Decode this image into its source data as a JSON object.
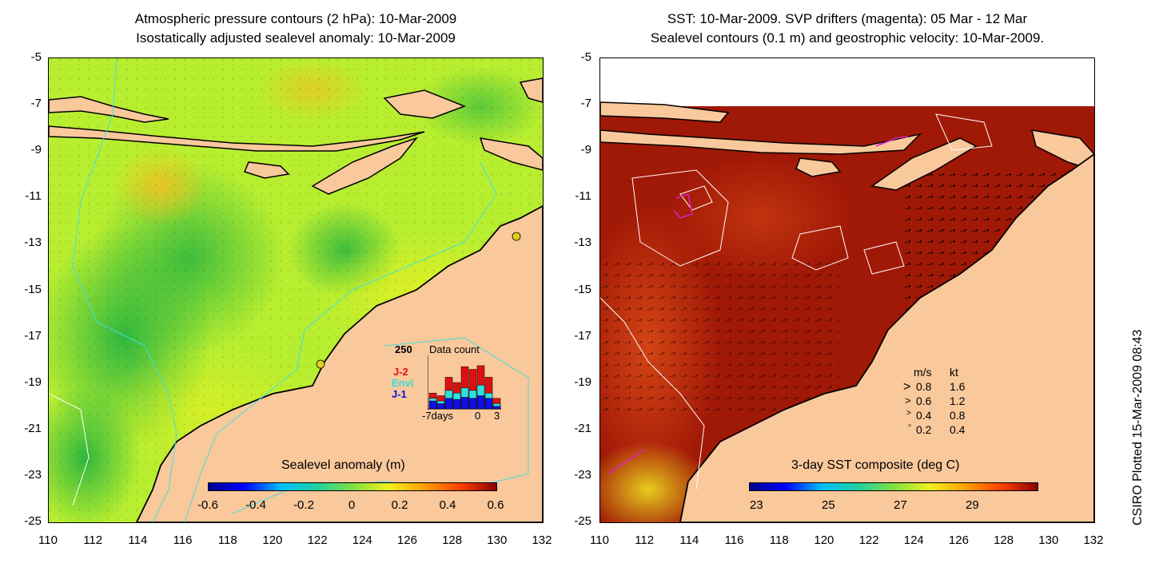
{
  "left_panel": {
    "title_line1": "Atmospheric pressure contours (2 hPa): 10-Mar-2009",
    "title_line2": "Isostatically adjusted sealevel anomaly: 10-Mar-2009",
    "colorbar": {
      "title": "Sealevel anomaly (m)",
      "ticks": [
        "-0.6",
        "-0.4",
        "-0.2",
        "0",
        "0.2",
        "0.4",
        "0.6"
      ]
    },
    "inset": {
      "title": "Data count",
      "ymax_label": "250",
      "series": [
        "J-2",
        "Envi",
        "J-1"
      ],
      "series_colors": [
        "#e01010",
        "#30e0e0",
        "#1010e0"
      ],
      "x_labels": [
        "-7days",
        "0",
        "3"
      ]
    }
  },
  "right_panel": {
    "title_line1": "SST: 10-Mar-2009. SVP drifters (magenta): 05 Mar - 12 Mar",
    "title_line2": "Sealevel contours (0.1 m) and geostrophic velocity: 10-Mar-2009.",
    "colorbar": {
      "title": "3-day SST composite (deg C)",
      "ticks": [
        "23",
        "25",
        "27",
        "29"
      ]
    },
    "velocity_legend": {
      "header_ms": "m/s",
      "header_kt": "kt",
      "rows": [
        {
          "ms": "0.8",
          "kt": "1.6"
        },
        {
          "ms": "0.6",
          "kt": "1.2"
        },
        {
          "ms": "0.4",
          "kt": "0.8"
        },
        {
          "ms": "0.2",
          "kt": "0.4"
        }
      ]
    }
  },
  "axes": {
    "lat_ticks": [
      "-5",
      "-7",
      "-9",
      "-11",
      "-13",
      "-15",
      "-17",
      "-19",
      "-21",
      "-23",
      "-25"
    ],
    "lon_ticks": [
      "110",
      "112",
      "114",
      "116",
      "118",
      "120",
      "122",
      "124",
      "126",
      "128",
      "130",
      "132"
    ]
  },
  "credit": "CSIRO Plotted 15-Mar-2009 08:43",
  "colors": {
    "land": "#f9c89b",
    "sla_background": "#b8ee30",
    "sst_background": "#a01806",
    "coastline": "#000000",
    "cyan_contour": "#40e0e0",
    "drifter": "#e020c0"
  }
}
